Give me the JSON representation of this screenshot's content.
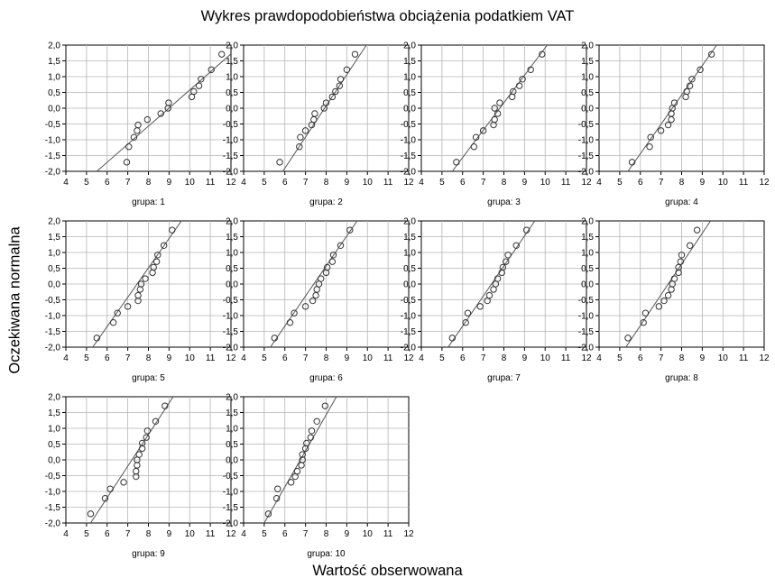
{
  "title": "Wykres prawdopodobieństwa obciążenia podatkiem VAT",
  "ylabel": "Oczekiwana normalna",
  "xlabel": "Wartość obserwowana",
  "chart_data": {
    "type": "scatter",
    "title": "Wykres prawdopodobieństwa obciążenia podatkiem VAT",
    "xlabel": "Wartość obserwowana",
    "ylabel": "Oczekiwana normalna",
    "xlim": [
      4,
      12
    ],
    "ylim": [
      -2,
      2
    ],
    "xticks": [
      "4",
      "5",
      "6",
      "7",
      "8",
      "9",
      "10",
      "11",
      "12"
    ],
    "yticks": [
      "2,0",
      "1,5",
      "1,0",
      "0,5",
      "0,0",
      "-0,5",
      "-1,0",
      "-1,5",
      "-2,0"
    ],
    "grid": true,
    "panels": [
      {
        "label": "grupa: 1",
        "line": [
          [
            5.5,
            -2.0
          ],
          [
            12.0,
            1.72
          ]
        ],
        "points": [
          [
            6.95,
            -1.71
          ],
          [
            7.05,
            -1.22
          ],
          [
            7.3,
            -0.92
          ],
          [
            7.45,
            -0.71
          ],
          [
            7.5,
            -0.53
          ],
          [
            7.95,
            -0.36
          ],
          [
            8.6,
            -0.17
          ],
          [
            8.95,
            0.0
          ],
          [
            8.98,
            0.17
          ],
          [
            10.1,
            0.36
          ],
          [
            10.2,
            0.53
          ],
          [
            10.45,
            0.71
          ],
          [
            10.55,
            0.92
          ],
          [
            11.05,
            1.22
          ],
          [
            11.55,
            1.71
          ]
        ]
      },
      {
        "label": "grupa: 2",
        "line": [
          [
            5.9,
            -2.0
          ],
          [
            9.95,
            2.0
          ]
        ],
        "points": [
          [
            5.75,
            -1.71
          ],
          [
            6.7,
            -1.22
          ],
          [
            6.75,
            -0.92
          ],
          [
            7.0,
            -0.71
          ],
          [
            7.3,
            -0.53
          ],
          [
            7.4,
            -0.36
          ],
          [
            7.45,
            -0.17
          ],
          [
            7.9,
            0.0
          ],
          [
            8.0,
            0.17
          ],
          [
            8.3,
            0.36
          ],
          [
            8.45,
            0.53
          ],
          [
            8.65,
            0.71
          ],
          [
            8.7,
            0.92
          ],
          [
            9.0,
            1.22
          ],
          [
            9.4,
            1.71
          ]
        ]
      },
      {
        "label": "grupa: 3",
        "line": [
          [
            5.5,
            -2.0
          ],
          [
            10.1,
            2.0
          ]
        ],
        "points": [
          [
            5.7,
            -1.71
          ],
          [
            6.55,
            -1.22
          ],
          [
            6.65,
            -0.92
          ],
          [
            7.0,
            -0.71
          ],
          [
            7.5,
            -0.53
          ],
          [
            7.55,
            -0.36
          ],
          [
            7.7,
            -0.17
          ],
          [
            7.55,
            0.0
          ],
          [
            7.8,
            0.17
          ],
          [
            8.4,
            0.36
          ],
          [
            8.45,
            0.53
          ],
          [
            8.75,
            0.71
          ],
          [
            8.9,
            0.92
          ],
          [
            9.3,
            1.22
          ],
          [
            9.85,
            1.71
          ]
        ]
      },
      {
        "label": "grupa: 4",
        "line": [
          [
            5.4,
            -2.0
          ],
          [
            9.7,
            2.0
          ]
        ],
        "points": [
          [
            5.6,
            -1.71
          ],
          [
            6.45,
            -1.22
          ],
          [
            6.5,
            -0.92
          ],
          [
            7.0,
            -0.71
          ],
          [
            7.35,
            -0.53
          ],
          [
            7.5,
            -0.36
          ],
          [
            7.5,
            -0.17
          ],
          [
            7.55,
            0.0
          ],
          [
            7.65,
            0.17
          ],
          [
            8.2,
            0.36
          ],
          [
            8.25,
            0.53
          ],
          [
            8.4,
            0.71
          ],
          [
            8.5,
            0.92
          ],
          [
            8.9,
            1.22
          ],
          [
            9.45,
            1.71
          ]
        ]
      },
      {
        "label": "grupa: 5",
        "line": [
          [
            5.3,
            -2.0
          ],
          [
            9.6,
            2.0
          ]
        ],
        "points": [
          [
            5.5,
            -1.71
          ],
          [
            6.3,
            -1.22
          ],
          [
            6.5,
            -0.92
          ],
          [
            7.0,
            -0.71
          ],
          [
            7.5,
            -0.53
          ],
          [
            7.5,
            -0.36
          ],
          [
            7.6,
            -0.17
          ],
          [
            7.65,
            0.0
          ],
          [
            7.85,
            0.17
          ],
          [
            8.2,
            0.36
          ],
          [
            8.25,
            0.53
          ],
          [
            8.4,
            0.71
          ],
          [
            8.45,
            0.92
          ],
          [
            8.75,
            1.22
          ],
          [
            9.15,
            1.71
          ]
        ]
      },
      {
        "label": "grupa: 6",
        "line": [
          [
            5.3,
            -2.0
          ],
          [
            9.5,
            2.0
          ]
        ],
        "points": [
          [
            5.5,
            -1.71
          ],
          [
            6.25,
            -1.22
          ],
          [
            6.45,
            -0.92
          ],
          [
            7.0,
            -0.71
          ],
          [
            7.35,
            -0.53
          ],
          [
            7.5,
            -0.36
          ],
          [
            7.55,
            -0.17
          ],
          [
            7.65,
            0.0
          ],
          [
            7.75,
            0.17
          ],
          [
            8.0,
            0.36
          ],
          [
            8.05,
            0.53
          ],
          [
            8.3,
            0.71
          ],
          [
            8.35,
            0.92
          ],
          [
            8.7,
            1.22
          ],
          [
            9.15,
            1.71
          ]
        ]
      },
      {
        "label": "grupa: 7",
        "line": [
          [
            5.3,
            -2.0
          ],
          [
            9.5,
            2.0
          ]
        ],
        "points": [
          [
            5.5,
            -1.71
          ],
          [
            6.15,
            -1.22
          ],
          [
            6.25,
            -0.92
          ],
          [
            6.85,
            -0.71
          ],
          [
            7.2,
            -0.53
          ],
          [
            7.3,
            -0.36
          ],
          [
            7.5,
            -0.17
          ],
          [
            7.6,
            0.0
          ],
          [
            7.7,
            0.17
          ],
          [
            7.9,
            0.36
          ],
          [
            7.95,
            0.53
          ],
          [
            8.1,
            0.71
          ],
          [
            8.2,
            0.92
          ],
          [
            8.6,
            1.22
          ],
          [
            9.1,
            1.71
          ]
        ]
      },
      {
        "label": "grupa: 8",
        "line": [
          [
            5.3,
            -2.0
          ],
          [
            9.4,
            2.0
          ]
        ],
        "points": [
          [
            5.4,
            -1.71
          ],
          [
            6.15,
            -1.22
          ],
          [
            6.25,
            -0.92
          ],
          [
            6.9,
            -0.71
          ],
          [
            7.15,
            -0.53
          ],
          [
            7.35,
            -0.36
          ],
          [
            7.5,
            -0.17
          ],
          [
            7.55,
            0.0
          ],
          [
            7.65,
            0.17
          ],
          [
            7.85,
            0.36
          ],
          [
            7.85,
            0.53
          ],
          [
            7.95,
            0.71
          ],
          [
            8.0,
            0.92
          ],
          [
            8.4,
            1.22
          ],
          [
            8.75,
            1.71
          ]
        ]
      },
      {
        "label": "grupa: 9",
        "line": [
          [
            5.2,
            -2.0
          ],
          [
            9.2,
            2.0
          ]
        ],
        "points": [
          [
            5.2,
            -1.71
          ],
          [
            5.9,
            -1.22
          ],
          [
            6.15,
            -0.92
          ],
          [
            6.8,
            -0.71
          ],
          [
            7.4,
            -0.53
          ],
          [
            7.4,
            -0.36
          ],
          [
            7.45,
            -0.17
          ],
          [
            7.45,
            0.0
          ],
          [
            7.55,
            0.17
          ],
          [
            7.7,
            0.36
          ],
          [
            7.7,
            0.53
          ],
          [
            7.9,
            0.71
          ],
          [
            7.95,
            0.92
          ],
          [
            8.35,
            1.22
          ],
          [
            8.8,
            1.71
          ]
        ]
      },
      {
        "label": "grupa: 10",
        "line": [
          [
            5.0,
            -2.0
          ],
          [
            8.5,
            2.0
          ]
        ],
        "points": [
          [
            5.2,
            -1.71
          ],
          [
            5.6,
            -1.22
          ],
          [
            5.65,
            -0.92
          ],
          [
            6.3,
            -0.71
          ],
          [
            6.5,
            -0.53
          ],
          [
            6.6,
            -0.36
          ],
          [
            6.8,
            -0.17
          ],
          [
            6.85,
            0.0
          ],
          [
            6.85,
            0.17
          ],
          [
            7.0,
            0.36
          ],
          [
            7.05,
            0.53
          ],
          [
            7.25,
            0.71
          ],
          [
            7.3,
            0.92
          ],
          [
            7.55,
            1.22
          ],
          [
            7.95,
            1.71
          ]
        ]
      }
    ]
  }
}
